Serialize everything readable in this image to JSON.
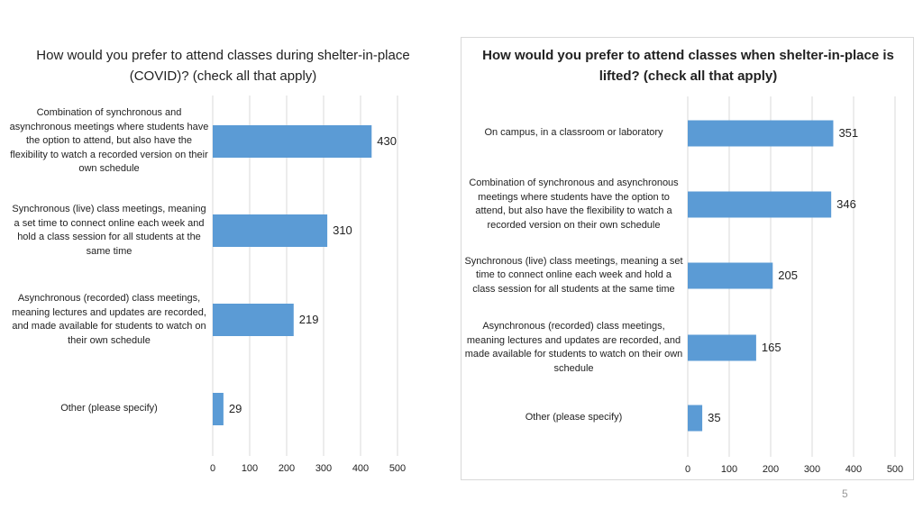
{
  "chart_data": [
    {
      "type": "bar",
      "orientation": "horizontal",
      "title": "How would you prefer to attend classes during shelter-in-place (COVID)? (check all that apply)",
      "categories": [
        "Combination of synchronous and asynchronous meetings where students have the option to attend, but also have the flexibility to watch a recorded version on their own schedule",
        "Synchronous (live) class meetings, meaning a set time to connect online each week and hold a class session for all students at the same time",
        "Asynchronous (recorded) class meetings, meaning lectures and updates are recorded, and made available for students to watch on their own schedule",
        "Other (please specify)"
      ],
      "values": [
        430,
        310,
        219,
        29
      ],
      "xlim": [
        0,
        500
      ],
      "xticks": [
        0,
        100,
        200,
        300,
        400,
        500
      ],
      "grid": true,
      "bar_color": "#5b9bd5"
    },
    {
      "type": "bar",
      "orientation": "horizontal",
      "title": "How would you prefer to attend classes when shelter-in-place is lifted? (check all that apply)",
      "categories": [
        "On campus, in a classroom or laboratory",
        "Combination of synchronous and asynchronous meetings where students have the option to attend, but also have the flexibility to watch a recorded version on their own schedule",
        "Synchronous (live) class meetings, meaning a set time to connect online each week and hold a class session for all students at the same time",
        "Asynchronous (recorded) class meetings, meaning lectures and updates are recorded, and made available for students to watch on their own schedule",
        "Other (please specify)"
      ],
      "values": [
        351,
        346,
        205,
        165,
        35
      ],
      "xlim": [
        0,
        500
      ],
      "xticks": [
        0,
        100,
        200,
        300,
        400,
        500
      ],
      "grid": true,
      "bar_color": "#5b9bd5"
    }
  ],
  "page_number": "5"
}
